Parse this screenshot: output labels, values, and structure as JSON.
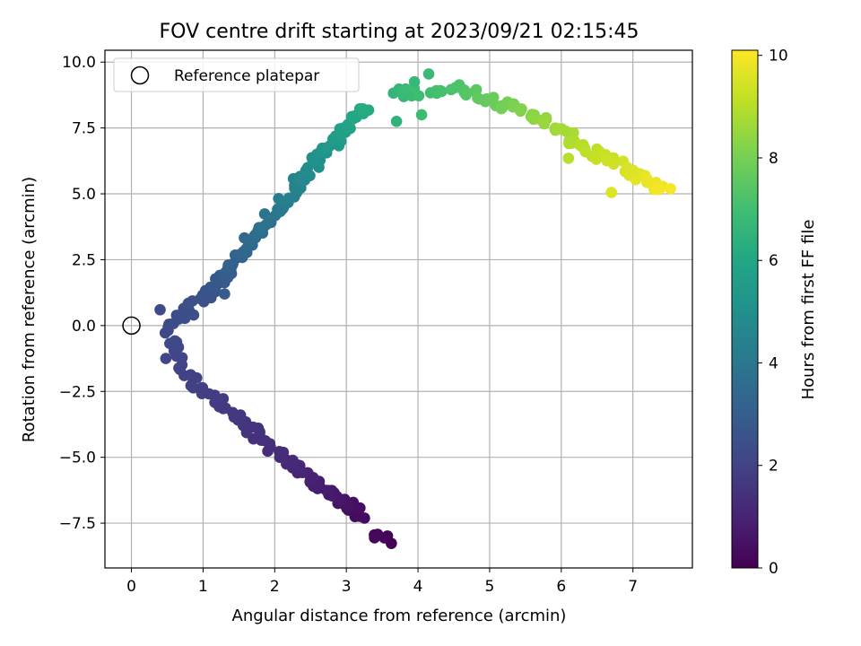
{
  "chart_data": {
    "type": "scatter",
    "title": "FOV centre drift starting at 2023/09/21 02:15:45",
    "xlabel": "Angular distance from reference (arcmin)",
    "ylabel": "Rotation from reference (arcmin)",
    "xlim": [
      -0.37,
      7.83
    ],
    "ylim": [
      -9.2,
      10.45
    ],
    "xticks": [
      "0",
      "1",
      "2",
      "3",
      "4",
      "5",
      "6",
      "7"
    ],
    "xtick_values": [
      0,
      1,
      2,
      3,
      4,
      5,
      6,
      7
    ],
    "yticks": [
      "−7.5",
      "−5.0",
      "−2.5",
      "0.0",
      "2.5",
      "5.0",
      "7.5",
      "10.0"
    ],
    "ytick_values": [
      -7.5,
      -5.0,
      -2.5,
      0.0,
      2.5,
      5.0,
      7.5,
      10.0
    ],
    "grid": true,
    "legend": {
      "position": "top-left",
      "entries": [
        "Reference platepar"
      ]
    },
    "reference_point": {
      "x": 0,
      "y": 0,
      "label": "Reference platepar"
    },
    "colorbar": {
      "label": "Hours from first FF file",
      "range": [
        0,
        10.1
      ],
      "ticks": [
        "0",
        "2",
        "4",
        "6",
        "8",
        "10"
      ],
      "tick_values": [
        0,
        2,
        4,
        6,
        8,
        10
      ],
      "colormap": "viridis"
    },
    "series": [
      {
        "segments": [
          {
            "x0": 3.6,
            "y0": -8.2,
            "x1": 3.35,
            "y1": -8.0,
            "t0": 0.0,
            "t1": 0.2,
            "n": 6
          },
          {
            "x0": 3.2,
            "y0": -7.2,
            "x1": 2.2,
            "y1": -5.2,
            "t0": 0.3,
            "t1": 1.2,
            "n": 40
          },
          {
            "x0": 2.2,
            "y0": -5.2,
            "x1": 0.75,
            "y1": -1.8,
            "t0": 1.2,
            "t1": 2.0,
            "n": 40
          },
          {
            "x0": 0.75,
            "y0": -1.8,
            "x1": 0.5,
            "y1": 0.0,
            "t0": 2.0,
            "t1": 2.25,
            "n": 14
          },
          {
            "x0": 0.5,
            "y0": 0.0,
            "x1": 1.1,
            "y1": 1.2,
            "t0": 2.25,
            "t1": 2.6,
            "n": 18
          },
          {
            "x0": 1.1,
            "y0": 1.2,
            "x1": 1.7,
            "y1": 3.3,
            "t0": 2.6,
            "t1": 3.5,
            "n": 30
          },
          {
            "x0": 1.7,
            "y0": 3.3,
            "x1": 2.6,
            "y1": 6.3,
            "t0": 3.5,
            "t1": 5.0,
            "n": 40
          },
          {
            "x0": 2.6,
            "y0": 6.3,
            "x1": 3.25,
            "y1": 8.25,
            "t0": 5.0,
            "t1": 6.2,
            "n": 30
          },
          {
            "x0": 3.6,
            "y0": 8.8,
            "x1": 4.6,
            "y1": 9.0,
            "t0": 6.6,
            "t1": 7.3,
            "n": 18
          },
          {
            "x0": 4.6,
            "y0": 9.0,
            "x1": 5.6,
            "y1": 8.0,
            "t0": 7.3,
            "t1": 8.3,
            "n": 26
          },
          {
            "x0": 5.6,
            "y0": 8.0,
            "x1": 6.3,
            "y1": 6.8,
            "t0": 8.3,
            "t1": 9.0,
            "n": 22
          },
          {
            "x0": 6.3,
            "y0": 6.8,
            "x1": 7.45,
            "y1": 5.05,
            "t0": 9.0,
            "t1": 10.0,
            "n": 30
          }
        ],
        "extra_points": [
          {
            "x": 3.7,
            "y": 7.75,
            "t": 6.5
          },
          {
            "x": 4.15,
            "y": 9.55,
            "t": 6.8
          },
          {
            "x": 4.05,
            "y": 8.0,
            "t": 6.9
          },
          {
            "x": 3.95,
            "y": 9.25,
            "t": 6.7
          },
          {
            "x": 3.12,
            "y": -7.25,
            "t": 0.35
          },
          {
            "x": 1.3,
            "y": 1.2,
            "t": 2.9
          },
          {
            "x": 6.1,
            "y": 6.35,
            "t": 9.0
          },
          {
            "x": 6.7,
            "y": 5.05,
            "t": 9.6
          },
          {
            "x": 0.4,
            "y": 0.6,
            "t": 2.3
          },
          {
            "x": 0.48,
            "y": -1.25,
            "t": 2.1
          }
        ]
      }
    ]
  }
}
